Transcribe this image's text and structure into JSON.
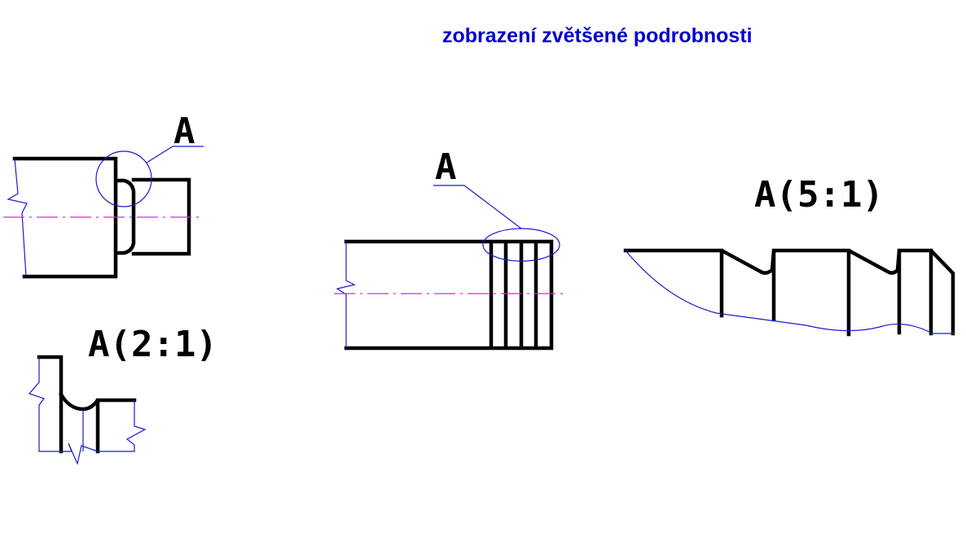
{
  "title": "zobrazení zvětšené podrobnosti",
  "colors": {
    "title": "#0000cc",
    "outline": "#000000",
    "thin_line": "#1a1acc",
    "centerline": "#cc33cc"
  },
  "figures": [
    {
      "detail_label": "A",
      "view_label": "A(2:1)"
    },
    {
      "detail_label": "A",
      "view_label": "A(5:1)"
    }
  ]
}
